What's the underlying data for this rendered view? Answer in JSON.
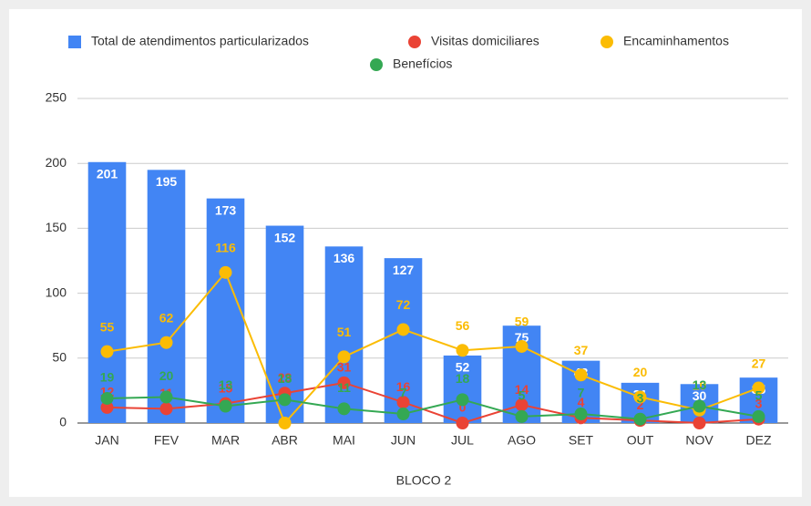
{
  "chart_data": {
    "type": "bar",
    "x_label": "BLOCO 2",
    "categories": [
      "JAN",
      "FEV",
      "MAR",
      "ABR",
      "MAI",
      "JUN",
      "JUL",
      "AGO",
      "SET",
      "OUT",
      "NOV",
      "DEZ"
    ],
    "series": [
      {
        "name": "Total de atendimentos particularizados",
        "type": "bar",
        "color": "#4285f4",
        "values": [
          201,
          195,
          173,
          152,
          136,
          127,
          52,
          75,
          48,
          31,
          30,
          35
        ]
      },
      {
        "name": "Visitas domiciliares",
        "type": "line",
        "color": "#ea4335",
        "values": [
          12,
          11,
          15,
          23,
          31,
          16,
          0,
          14,
          4,
          2,
          0,
          3
        ]
      },
      {
        "name": "Encaminhamentos",
        "type": "line",
        "color": "#fbbc04",
        "values": [
          55,
          62,
          116,
          0,
          51,
          72,
          56,
          59,
          37,
          20,
          10,
          27
        ]
      },
      {
        "name": "Benefícios",
        "type": "line",
        "color": "#34a853",
        "values": [
          19,
          20,
          13,
          18,
          11,
          7,
          18,
          5,
          7,
          3,
          13,
          5
        ]
      }
    ],
    "ylim": [
      0,
      250
    ],
    "yticks": [
      0,
      50,
      100,
      150,
      200,
      250
    ],
    "grid": true
  }
}
